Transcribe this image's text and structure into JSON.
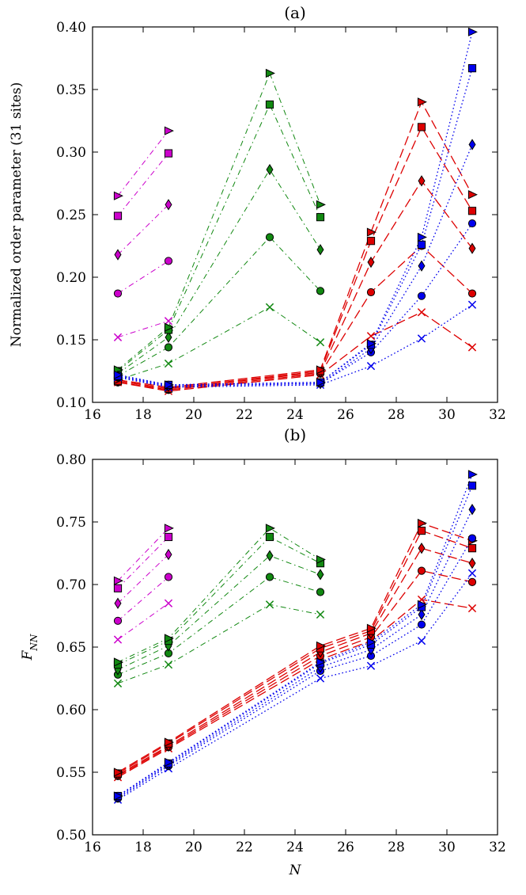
{
  "chart_data": [
    {
      "type": "line",
      "title": "(a)",
      "xlabel": "",
      "ylabel": "Normalized order parameter (31 sites)",
      "xlim": [
        16,
        32
      ],
      "ylim": [
        0.1,
        0.4
      ],
      "xticks": [
        "16",
        "18",
        "20",
        "22",
        "24",
        "26",
        "28",
        "30",
        "32"
      ],
      "yticks": [
        "0.10",
        "0.15",
        "0.20",
        "0.25",
        "0.30",
        "0.35",
        "0.40"
      ],
      "series": [
        {
          "name": "magenta-x",
          "color": "#cc00cc",
          "marker": "x",
          "dash": "dashdot",
          "x": [
            17,
            19
          ],
          "y": [
            0.152,
            0.165
          ]
        },
        {
          "name": "magenta-circle",
          "color": "#cc00cc",
          "marker": "circle",
          "dash": "dashdot",
          "x": [
            17,
            19
          ],
          "y": [
            0.187,
            0.213
          ]
        },
        {
          "name": "magenta-diamond",
          "color": "#cc00cc",
          "marker": "diamond",
          "dash": "dashdot",
          "x": [
            17,
            19
          ],
          "y": [
            0.218,
            0.258
          ]
        },
        {
          "name": "magenta-square",
          "color": "#cc00cc",
          "marker": "square",
          "dash": "dashdot",
          "x": [
            17,
            19
          ],
          "y": [
            0.249,
            0.299
          ]
        },
        {
          "name": "magenta-triangle",
          "color": "#cc00cc",
          "marker": "triangle",
          "dash": "dashdot",
          "x": [
            17,
            19
          ],
          "y": [
            0.265,
            0.317
          ]
        },
        {
          "name": "green-x",
          "color": "#118811",
          "marker": "x",
          "dash": "dashdot",
          "x": [
            17,
            19,
            23,
            25
          ],
          "y": [
            0.118,
            0.131,
            0.176,
            0.148
          ]
        },
        {
          "name": "green-circle",
          "color": "#118811",
          "marker": "circle",
          "dash": "dashdot",
          "x": [
            17,
            19,
            23,
            25
          ],
          "y": [
            0.121,
            0.144,
            0.232,
            0.189
          ]
        },
        {
          "name": "green-diamond",
          "color": "#118811",
          "marker": "diamond",
          "dash": "dashdot",
          "x": [
            17,
            19,
            23,
            25
          ],
          "y": [
            0.123,
            0.152,
            0.286,
            0.222
          ]
        },
        {
          "name": "green-square",
          "color": "#118811",
          "marker": "square",
          "dash": "dashdot",
          "x": [
            17,
            19,
            23,
            25
          ],
          "y": [
            0.125,
            0.158,
            0.338,
            0.248
          ]
        },
        {
          "name": "green-triangle",
          "color": "#118811",
          "marker": "triangle",
          "dash": "dashdot",
          "x": [
            17,
            19,
            23,
            25
          ],
          "y": [
            0.126,
            0.16,
            0.363,
            0.258
          ]
        },
        {
          "name": "red-x",
          "color": "#dd0000",
          "marker": "x",
          "dash": "dashed",
          "x": [
            17,
            19,
            25,
            27,
            29,
            31
          ],
          "y": [
            0.116,
            0.109,
            0.122,
            0.153,
            0.172,
            0.144
          ]
        },
        {
          "name": "red-circle",
          "color": "#dd0000",
          "marker": "circle",
          "dash": "dashed",
          "x": [
            17,
            19,
            25,
            27,
            29,
            31
          ],
          "y": [
            0.116,
            0.11,
            0.123,
            0.188,
            0.225,
            0.187
          ]
        },
        {
          "name": "red-diamond",
          "color": "#dd0000",
          "marker": "diamond",
          "dash": "dashed",
          "x": [
            17,
            19,
            25,
            27,
            29,
            31
          ],
          "y": [
            0.117,
            0.111,
            0.124,
            0.212,
            0.277,
            0.223
          ]
        },
        {
          "name": "red-square",
          "color": "#dd0000",
          "marker": "square",
          "dash": "dashed",
          "x": [
            17,
            19,
            25,
            27,
            29,
            31
          ],
          "y": [
            0.117,
            0.111,
            0.125,
            0.229,
            0.32,
            0.253
          ]
        },
        {
          "name": "red-triangle",
          "color": "#dd0000",
          "marker": "triangle",
          "dash": "dashed",
          "x": [
            17,
            19,
            25,
            27,
            29,
            31
          ],
          "y": [
            0.118,
            0.112,
            0.126,
            0.236,
            0.34,
            0.266
          ]
        },
        {
          "name": "blue-x",
          "color": "#0000ee",
          "marker": "x",
          "dash": "dotted",
          "x": [
            17,
            19,
            25,
            27,
            29,
            31
          ],
          "y": [
            0.12,
            0.112,
            0.114,
            0.129,
            0.151,
            0.178
          ]
        },
        {
          "name": "blue-circle",
          "color": "#0000ee",
          "marker": "circle",
          "dash": "dotted",
          "x": [
            17,
            19,
            25,
            27,
            29,
            31
          ],
          "y": [
            0.12,
            0.113,
            0.115,
            0.14,
            0.185,
            0.243
          ]
        },
        {
          "name": "blue-diamond",
          "color": "#0000ee",
          "marker": "diamond",
          "dash": "dotted",
          "x": [
            17,
            19,
            25,
            27,
            29,
            31
          ],
          "y": [
            0.121,
            0.113,
            0.115,
            0.143,
            0.209,
            0.306
          ]
        },
        {
          "name": "blue-square",
          "color": "#0000ee",
          "marker": "square",
          "dash": "dotted",
          "x": [
            17,
            19,
            25,
            27,
            29,
            31
          ],
          "y": [
            0.121,
            0.114,
            0.116,
            0.146,
            0.226,
            0.367
          ]
        },
        {
          "name": "blue-triangle",
          "color": "#0000ee",
          "marker": "triangle",
          "dash": "dotted",
          "x": [
            17,
            19,
            25,
            27,
            29,
            31
          ],
          "y": [
            0.122,
            0.114,
            0.116,
            0.147,
            0.232,
            0.396
          ]
        }
      ]
    },
    {
      "type": "line",
      "title": "(b)",
      "xlabel": "N",
      "ylabel": "F",
      "ylabel_subscript": "NN",
      "xlim": [
        16,
        32
      ],
      "ylim": [
        0.5,
        0.8
      ],
      "xticks": [
        "16",
        "18",
        "20",
        "22",
        "24",
        "26",
        "28",
        "30",
        "32"
      ],
      "yticks": [
        "0.50",
        "0.55",
        "0.60",
        "0.65",
        "0.70",
        "0.75",
        "0.80"
      ],
      "series": [
        {
          "name": "magenta-x",
          "color": "#cc00cc",
          "marker": "x",
          "dash": "dashdot",
          "x": [
            17,
            19
          ],
          "y": [
            0.656,
            0.685
          ]
        },
        {
          "name": "magenta-circle",
          "color": "#cc00cc",
          "marker": "circle",
          "dash": "dashdot",
          "x": [
            17,
            19
          ],
          "y": [
            0.671,
            0.706
          ]
        },
        {
          "name": "magenta-diamond",
          "color": "#cc00cc",
          "marker": "diamond",
          "dash": "dashdot",
          "x": [
            17,
            19
          ],
          "y": [
            0.685,
            0.724
          ]
        },
        {
          "name": "magenta-square",
          "color": "#cc00cc",
          "marker": "square",
          "dash": "dashdot",
          "x": [
            17,
            19
          ],
          "y": [
            0.697,
            0.738
          ]
        },
        {
          "name": "magenta-triangle",
          "color": "#cc00cc",
          "marker": "triangle",
          "dash": "dashdot",
          "x": [
            17,
            19
          ],
          "y": [
            0.703,
            0.745
          ]
        },
        {
          "name": "green-x",
          "color": "#118811",
          "marker": "x",
          "dash": "dashdot",
          "x": [
            17,
            19,
            23,
            25
          ],
          "y": [
            0.621,
            0.636,
            0.684,
            0.676
          ]
        },
        {
          "name": "green-circle",
          "color": "#118811",
          "marker": "circle",
          "dash": "dashdot",
          "x": [
            17,
            19,
            23,
            25
          ],
          "y": [
            0.628,
            0.645,
            0.706,
            0.694
          ]
        },
        {
          "name": "green-diamond",
          "color": "#118811",
          "marker": "diamond",
          "dash": "dashdot",
          "x": [
            17,
            19,
            23,
            25
          ],
          "y": [
            0.632,
            0.651,
            0.723,
            0.708
          ]
        },
        {
          "name": "green-square",
          "color": "#118811",
          "marker": "square",
          "dash": "dashdot",
          "x": [
            17,
            19,
            23,
            25
          ],
          "y": [
            0.636,
            0.655,
            0.738,
            0.717
          ]
        },
        {
          "name": "green-triangle",
          "color": "#118811",
          "marker": "triangle",
          "dash": "dashdot",
          "x": [
            17,
            19,
            23,
            25
          ],
          "y": [
            0.638,
            0.657,
            0.745,
            0.72
          ]
        },
        {
          "name": "red-x",
          "color": "#dd0000",
          "marker": "x",
          "dash": "dashed",
          "x": [
            17,
            19,
            25,
            27,
            29,
            31
          ],
          "y": [
            0.546,
            0.569,
            0.64,
            0.655,
            0.688,
            0.681
          ]
        },
        {
          "name": "red-circle",
          "color": "#dd0000",
          "marker": "circle",
          "dash": "dashed",
          "x": [
            17,
            19,
            25,
            27,
            29,
            31
          ],
          "y": [
            0.547,
            0.57,
            0.643,
            0.658,
            0.711,
            0.702
          ]
        },
        {
          "name": "red-diamond",
          "color": "#dd0000",
          "marker": "diamond",
          "dash": "dashed",
          "x": [
            17,
            19,
            25,
            27,
            29,
            31
          ],
          "y": [
            0.548,
            0.571,
            0.646,
            0.661,
            0.729,
            0.717
          ]
        },
        {
          "name": "red-square",
          "color": "#dd0000",
          "marker": "square",
          "dash": "dashed",
          "x": [
            17,
            19,
            25,
            27,
            29,
            31
          ],
          "y": [
            0.549,
            0.573,
            0.649,
            0.663,
            0.743,
            0.729
          ]
        },
        {
          "name": "red-triangle",
          "color": "#dd0000",
          "marker": "triangle",
          "dash": "dashed",
          "x": [
            17,
            19,
            25,
            27,
            29,
            31
          ],
          "y": [
            0.55,
            0.574,
            0.651,
            0.665,
            0.749,
            0.735
          ]
        },
        {
          "name": "blue-x",
          "color": "#0000ee",
          "marker": "x",
          "dash": "dotted",
          "x": [
            17,
            19,
            25,
            27,
            29,
            31
          ],
          "y": [
            0.528,
            0.553,
            0.625,
            0.635,
            0.655,
            0.709
          ]
        },
        {
          "name": "blue-circle",
          "color": "#0000ee",
          "marker": "circle",
          "dash": "dotted",
          "x": [
            17,
            19,
            25,
            27,
            29,
            31
          ],
          "y": [
            0.529,
            0.555,
            0.631,
            0.643,
            0.668,
            0.737
          ]
        },
        {
          "name": "blue-diamond",
          "color": "#0000ee",
          "marker": "diamond",
          "dash": "dotted",
          "x": [
            17,
            19,
            25,
            27,
            29,
            31
          ],
          "y": [
            0.53,
            0.556,
            0.634,
            0.648,
            0.676,
            0.76
          ]
        },
        {
          "name": "blue-square",
          "color": "#0000ee",
          "marker": "square",
          "dash": "dotted",
          "x": [
            17,
            19,
            25,
            27,
            29,
            31
          ],
          "y": [
            0.531,
            0.557,
            0.637,
            0.652,
            0.682,
            0.779
          ]
        },
        {
          "name": "blue-triangle",
          "color": "#0000ee",
          "marker": "triangle",
          "dash": "dotted",
          "x": [
            17,
            19,
            25,
            27,
            29,
            31
          ],
          "y": [
            0.531,
            0.558,
            0.638,
            0.654,
            0.684,
            0.788
          ]
        }
      ]
    }
  ]
}
